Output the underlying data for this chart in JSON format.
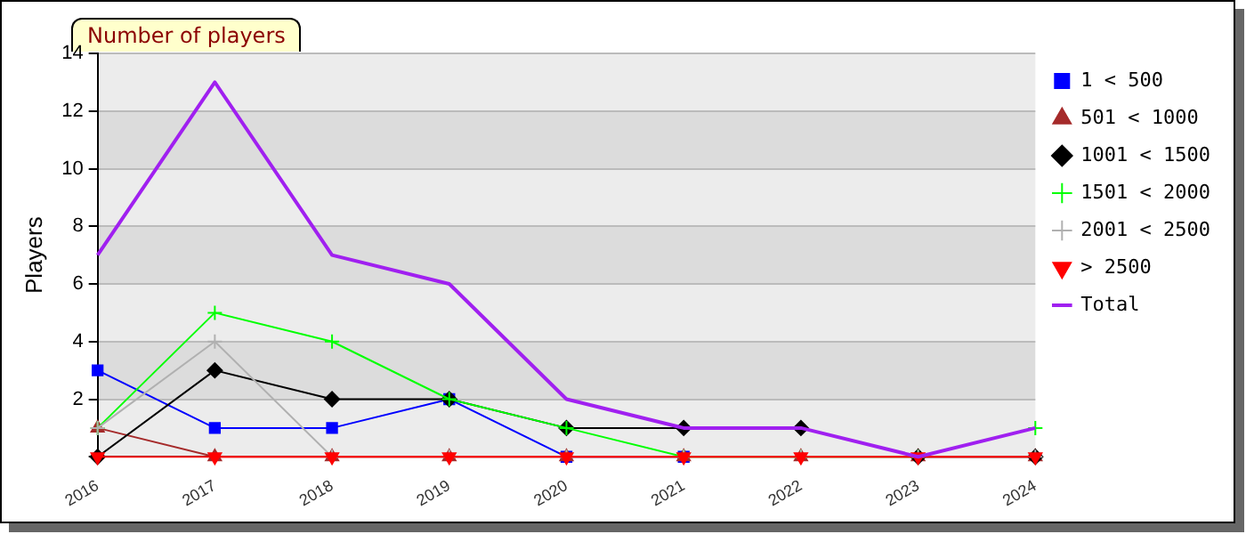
{
  "chart_data": {
    "type": "line",
    "title": "Number of players",
    "ylabel": "Players",
    "categories": [
      "2016",
      "2017",
      "2018",
      "2019",
      "2020",
      "2021",
      "2022",
      "2023",
      "2024"
    ],
    "series": [
      {
        "name": "1 < 500",
        "color": "#0000ff",
        "marker": "square",
        "values": [
          3,
          1,
          1,
          2,
          0,
          0,
          null,
          null,
          null
        ]
      },
      {
        "name": "501 < 1000",
        "color": "#a52a2a",
        "marker": "triangle",
        "values": [
          1,
          0,
          0,
          0,
          0,
          0,
          0,
          0,
          0
        ]
      },
      {
        "name": "1001 < 1500",
        "color": "#000000",
        "marker": "diamond",
        "values": [
          0,
          3,
          2,
          2,
          1,
          1,
          1,
          0,
          0
        ]
      },
      {
        "name": "1501 < 2000",
        "color": "#00ff00",
        "marker": "cross",
        "values": [
          1,
          5,
          4,
          2,
          1,
          0,
          0,
          0,
          1
        ]
      },
      {
        "name": "2001 < 2500",
        "color": "#b0b0b0",
        "marker": "cross",
        "values": [
          1,
          4,
          0,
          0,
          0,
          0,
          0,
          0,
          0
        ]
      },
      {
        "name": "> 2500",
        "color": "#ff0000",
        "marker": "triangle",
        "values": [
          0,
          0,
          0,
          0,
          0,
          0,
          0,
          0,
          0
        ]
      },
      {
        "name": "Total",
        "color": "#a020f0",
        "marker": "none",
        "values": [
          7,
          13,
          7,
          6,
          2,
          1,
          1,
          0,
          1
        ]
      }
    ],
    "ylim": [
      0,
      14
    ],
    "yticks": [
      {
        "value": 0,
        "label": null
      },
      2,
      4,
      6,
      8,
      10,
      12,
      14
    ],
    "grid": "y",
    "legend": "top right",
    "line_style": "solid"
  }
}
